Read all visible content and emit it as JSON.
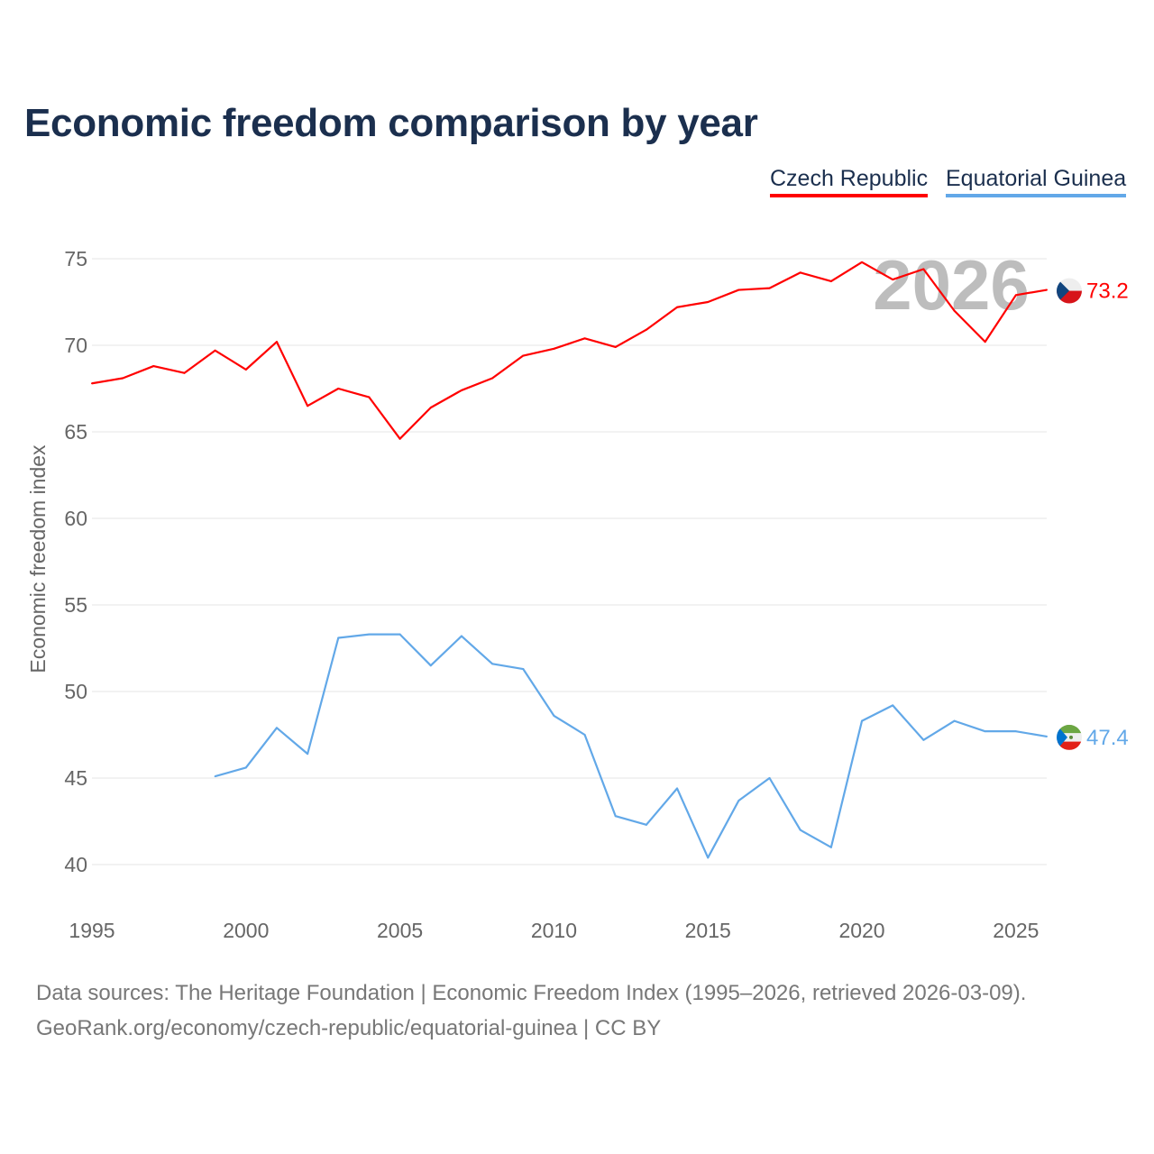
{
  "chart_data": {
    "type": "line",
    "title": "Economic freedom comparison by year",
    "xlabel": "",
    "ylabel": "Economic freedom index",
    "xlim": [
      1995,
      2026
    ],
    "ylim": [
      40,
      75
    ],
    "x_ticks": [
      1995,
      2000,
      2005,
      2010,
      2015,
      2020,
      2025
    ],
    "y_ticks": [
      40,
      45,
      50,
      55,
      60,
      65,
      70,
      75
    ],
    "grid": true,
    "legend_placement": "top-right",
    "year_watermark": "2026",
    "series": [
      {
        "name": "Czech Republic",
        "color": "#ff0000",
        "end_label": "73.2",
        "flag": "czech-flag",
        "x": [
          1995,
          1996,
          1997,
          1998,
          1999,
          2000,
          2001,
          2002,
          2003,
          2004,
          2005,
          2006,
          2007,
          2008,
          2009,
          2010,
          2011,
          2012,
          2013,
          2014,
          2015,
          2016,
          2017,
          2018,
          2019,
          2020,
          2021,
          2022,
          2023,
          2024,
          2025,
          2026
        ],
        "values": [
          67.8,
          68.1,
          68.8,
          68.4,
          69.7,
          68.6,
          70.2,
          66.5,
          67.5,
          67.0,
          64.6,
          66.4,
          67.4,
          68.1,
          69.4,
          69.8,
          70.4,
          69.9,
          70.9,
          72.2,
          72.5,
          73.2,
          73.3,
          74.2,
          73.7,
          74.8,
          73.8,
          74.4,
          72.0,
          70.2,
          72.9,
          73.2
        ]
      },
      {
        "name": "Equatorial Guinea",
        "color": "#62a8e8",
        "end_label": "47.4",
        "flag": "equatorial-guinea-flag",
        "x": [
          1999,
          2000,
          2001,
          2002,
          2003,
          2004,
          2005,
          2006,
          2007,
          2008,
          2009,
          2010,
          2011,
          2012,
          2013,
          2014,
          2015,
          2016,
          2017,
          2018,
          2019,
          2020,
          2021,
          2022,
          2023,
          2024,
          2025,
          2026
        ],
        "values": [
          45.1,
          45.6,
          47.9,
          46.4,
          53.1,
          53.3,
          53.3,
          51.5,
          53.2,
          51.6,
          51.3,
          48.6,
          47.5,
          42.8,
          42.3,
          44.4,
          40.4,
          43.7,
          45.0,
          42.0,
          41.0,
          48.3,
          49.2,
          47.2,
          48.3,
          47.7,
          47.7,
          47.4
        ]
      }
    ]
  },
  "source": {
    "line1": "Data sources: The Heritage Foundation | Economic Freedom Index (1995–2026, retrieved 2026-03-09).",
    "line2": "GeoRank.org/economy/czech-republic/equatorial-guinea | CC BY"
  }
}
